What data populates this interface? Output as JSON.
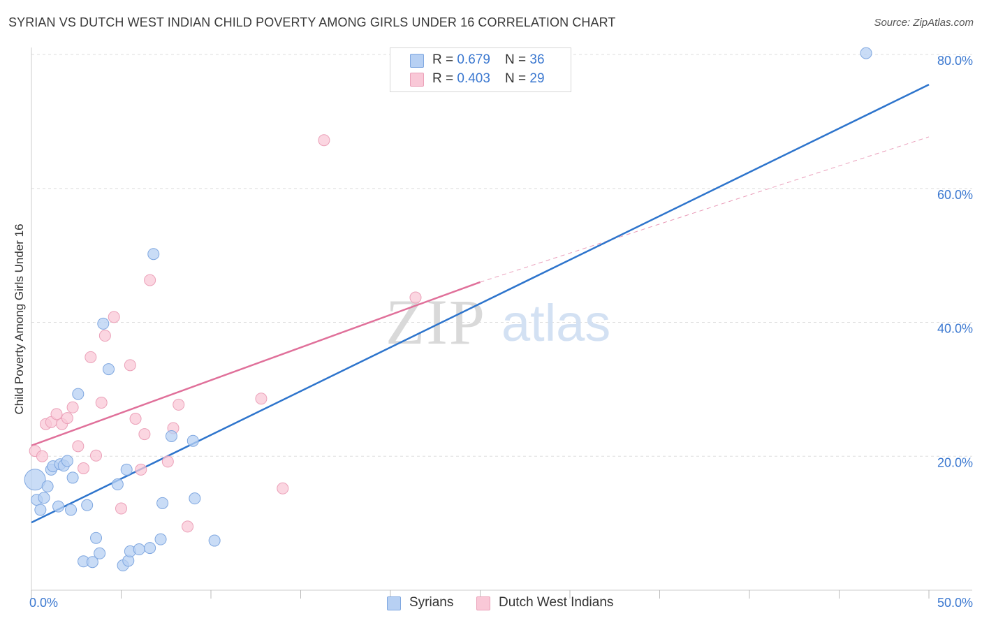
{
  "title": "SYRIAN VS DUTCH WEST INDIAN CHILD POVERTY AMONG GIRLS UNDER 16 CORRELATION CHART",
  "source": "Source: ZipAtlas.com",
  "watermark": {
    "zip": "ZIP",
    "atlas": "atlas"
  },
  "legend_top": {
    "rows": [
      {
        "r_label": "R = ",
        "r_value": "0.679",
        "n_label": "N = ",
        "n_value": "36"
      },
      {
        "r_label": "R = ",
        "r_value": "0.403",
        "n_label": "N = ",
        "n_value": "29"
      }
    ]
  },
  "colors": {
    "syrians_fill": "#b7d0f3",
    "syrians_stroke": "#7fa7e0",
    "syrians_line": "#2d74cc",
    "dwi_fill": "#f9c8d7",
    "dwi_stroke": "#eba0b8",
    "dwi_line": "#e0709a",
    "grid": "#dddddd",
    "axis_label": "#3b78d0"
  },
  "chart_data": {
    "type": "scatter",
    "title": "SYRIAN VS DUTCH WEST INDIAN CHILD POVERTY AMONG GIRLS UNDER 16 CORRELATION CHART",
    "xlabel": "",
    "ylabel": "Child Poverty Among Girls Under 16",
    "xlim": [
      0,
      50
    ],
    "ylim": [
      0,
      80
    ],
    "x_tick_labels": [
      "0.0%",
      "50.0%"
    ],
    "y_tick_values": [
      20,
      40,
      60,
      80
    ],
    "y_tick_labels": [
      "20.0%",
      "40.0%",
      "60.0%",
      "80.0%"
    ],
    "grid": true,
    "legend": [
      "Syrians",
      "Dutch West Indians"
    ],
    "series": [
      {
        "name": "Syrians",
        "R": 0.679,
        "N": 36,
        "trend": {
          "x": [
            0,
            50
          ],
          "y": [
            10.1,
            75.5
          ],
          "style": "solid"
        },
        "points": [
          [
            0.2,
            16.5
          ],
          [
            0.3,
            13.5
          ],
          [
            0.5,
            12.0
          ],
          [
            0.7,
            13.8
          ],
          [
            0.9,
            15.5
          ],
          [
            1.1,
            18.0
          ],
          [
            1.2,
            18.5
          ],
          [
            1.5,
            12.5
          ],
          [
            1.6,
            18.8
          ],
          [
            1.8,
            18.6
          ],
          [
            2.0,
            19.3
          ],
          [
            2.2,
            12.0
          ],
          [
            2.3,
            16.8
          ],
          [
            2.6,
            29.3
          ],
          [
            2.9,
            4.3
          ],
          [
            3.1,
            12.7
          ],
          [
            3.4,
            4.2
          ],
          [
            3.6,
            7.8
          ],
          [
            3.8,
            5.5
          ],
          [
            4.0,
            39.8
          ],
          [
            4.3,
            33.0
          ],
          [
            4.8,
            15.8
          ],
          [
            5.1,
            3.7
          ],
          [
            5.3,
            18.0
          ],
          [
            5.4,
            4.4
          ],
          [
            5.5,
            5.8
          ],
          [
            6.0,
            6.1
          ],
          [
            6.6,
            6.3
          ],
          [
            6.8,
            50.2
          ],
          [
            7.2,
            7.6
          ],
          [
            7.3,
            13.0
          ],
          [
            7.8,
            23.0
          ],
          [
            9.0,
            22.3
          ],
          [
            9.1,
            13.7
          ],
          [
            10.2,
            7.4
          ],
          [
            46.5,
            80.2
          ]
        ]
      },
      {
        "name": "Dutch West Indians",
        "R": 0.403,
        "N": 29,
        "trend": {
          "x": [
            0,
            25
          ],
          "y": [
            21.6,
            46.0
          ],
          "style": "solid"
        },
        "trend_extension": {
          "x": [
            25,
            50
          ],
          "y": [
            46.0,
            67.7
          ],
          "style": "dashed"
        },
        "points": [
          [
            0.2,
            20.8
          ],
          [
            0.6,
            20.0
          ],
          [
            0.8,
            24.8
          ],
          [
            1.1,
            25.1
          ],
          [
            1.4,
            26.3
          ],
          [
            1.7,
            24.8
          ],
          [
            2.0,
            25.7
          ],
          [
            2.3,
            27.3
          ],
          [
            2.6,
            21.5
          ],
          [
            2.9,
            18.2
          ],
          [
            3.3,
            34.8
          ],
          [
            3.6,
            20.1
          ],
          [
            3.9,
            28.0
          ],
          [
            4.1,
            38.0
          ],
          [
            4.6,
            40.8
          ],
          [
            5.0,
            12.2
          ],
          [
            5.5,
            33.6
          ],
          [
            5.8,
            25.6
          ],
          [
            6.1,
            18.0
          ],
          [
            6.3,
            23.3
          ],
          [
            6.6,
            46.3
          ],
          [
            7.6,
            19.2
          ],
          [
            7.9,
            24.2
          ],
          [
            8.2,
            27.7
          ],
          [
            8.7,
            9.5
          ],
          [
            12.8,
            28.6
          ],
          [
            14.0,
            15.2
          ],
          [
            16.3,
            67.2
          ],
          [
            21.4,
            43.7
          ]
        ]
      }
    ]
  }
}
